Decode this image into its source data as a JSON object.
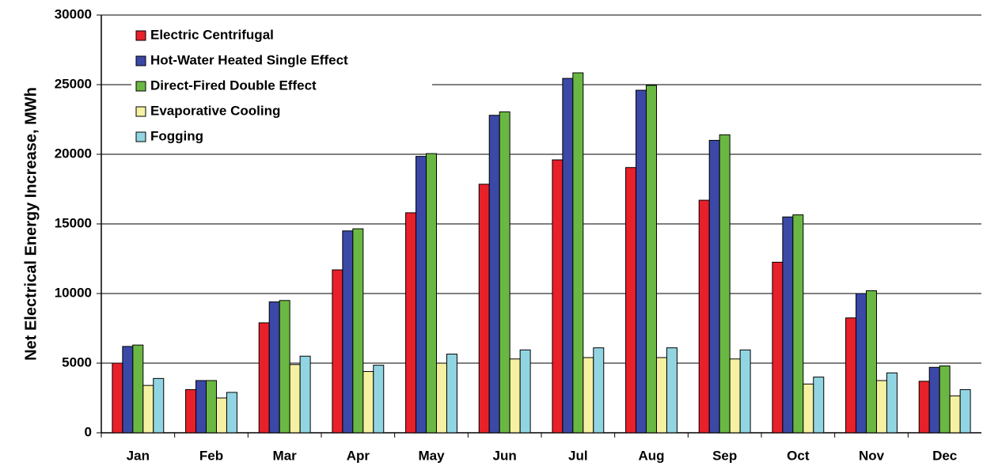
{
  "chart_data": {
    "type": "bar",
    "y_label": "Net Electrical Energy Increase, MWh",
    "categories": [
      "Jan",
      "Feb",
      "Mar",
      "Apr",
      "May",
      "Jun",
      "Jul",
      "Aug",
      "Sep",
      "Oct",
      "Nov",
      "Dec"
    ],
    "series": [
      {
        "name": "Electric Centrifugal",
        "color": "#e8202a",
        "values": [
          5000,
          3100,
          7900,
          11700,
          15800,
          17850,
          19600,
          19050,
          16700,
          12250,
          8250,
          3700
        ]
      },
      {
        "name": "Hot-Water Heated Single Effect",
        "color": "#3b48a6",
        "values": [
          6200,
          3750,
          9400,
          14500,
          19850,
          22800,
          25450,
          24600,
          21000,
          15500,
          10000,
          4700
        ]
      },
      {
        "name": "Direct-Fired Double Effect",
        "color": "#6ab843",
        "values": [
          6300,
          3750,
          9500,
          14650,
          20050,
          23050,
          25850,
          24950,
          21400,
          15650,
          10200,
          4800
        ]
      },
      {
        "name": "Evaporative Cooling",
        "color": "#f6f1a2",
        "values": [
          3400,
          2500,
          4900,
          4400,
          5000,
          5300,
          5400,
          5400,
          5300,
          3500,
          3750,
          2650
        ]
      },
      {
        "name": "Fogging",
        "color": "#92d5e2",
        "values": [
          3900,
          2900,
          5500,
          4850,
          5650,
          5950,
          6100,
          6100,
          5950,
          4000,
          4300,
          3100
        ]
      }
    ],
    "ylim": [
      0,
      30000
    ],
    "yticks": [
      0,
      5000,
      10000,
      15000,
      20000,
      25000,
      30000
    ],
    "grid": true,
    "legend": "upper-left"
  }
}
